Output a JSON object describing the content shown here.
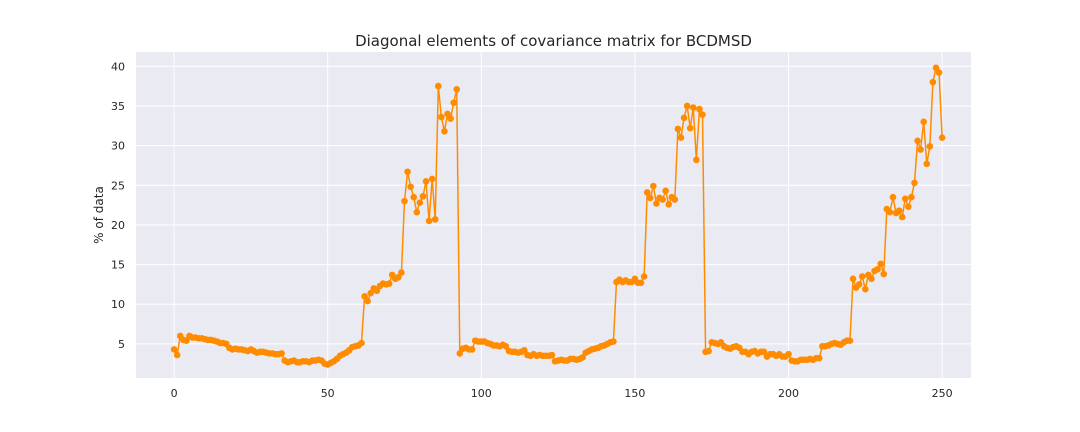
{
  "chart_data": {
    "type": "line",
    "title": "Diagonal elements of covariance matrix for BCDMSD",
    "xlabel": "",
    "ylabel": "% of data",
    "xlim": [
      -12.4,
      259.4
    ],
    "ylim": [
      0.7,
      41.8
    ],
    "xticks": [
      0,
      50,
      100,
      150,
      200,
      250
    ],
    "yticks": [
      5,
      10,
      15,
      20,
      25,
      30,
      35,
      40
    ],
    "grid": true,
    "legend": "none",
    "colors": {
      "background": "#eaeaf2",
      "grid": "#ffffff",
      "series": "#ff8c00"
    },
    "series": [
      {
        "x_start": 0,
        "values": [
          4.3,
          3.6,
          6.0,
          5.5,
          5.4,
          6.0,
          5.8,
          5.8,
          5.7,
          5.7,
          5.6,
          5.5,
          5.5,
          5.4,
          5.3,
          5.1,
          5.1,
          5.0,
          4.5,
          4.3,
          4.4,
          4.3,
          4.3,
          4.2,
          4.1,
          4.3,
          4.1,
          3.9,
          4.0,
          4.0,
          3.9,
          3.8,
          3.8,
          3.7,
          3.7,
          3.8,
          2.9,
          2.7,
          2.8,
          2.9,
          2.7,
          2.7,
          2.8,
          2.8,
          2.7,
          2.9,
          2.9,
          3.0,
          2.9,
          2.5,
          2.4,
          2.6,
          2.8,
          3.1,
          3.5,
          3.7,
          3.9,
          4.2,
          4.6,
          4.7,
          4.8,
          5.1,
          11.0,
          10.4,
          11.4,
          12.0,
          11.7,
          12.3,
          12.6,
          12.5,
          12.6,
          13.7,
          13.2,
          13.4,
          14.0,
          23.0,
          26.7,
          24.8,
          23.5,
          21.6,
          22.8,
          23.6,
          25.5,
          20.5,
          25.8,
          20.7,
          37.5,
          33.6,
          31.8,
          34.0,
          33.4,
          35.4,
          37.1,
          3.8,
          4.4,
          4.5,
          4.3,
          4.3,
          5.4,
          5.3,
          5.3,
          5.3,
          5.1,
          5.0,
          4.8,
          4.8,
          4.7,
          4.9,
          4.7,
          4.1,
          4.0,
          4.0,
          3.9,
          4.0,
          4.2,
          3.6,
          3.5,
          3.7,
          3.5,
          3.6,
          3.5,
          3.5,
          3.5,
          3.6,
          2.8,
          2.9,
          3.0,
          2.9,
          2.9,
          3.1,
          3.1,
          3.0,
          3.1,
          3.3,
          3.9,
          4.1,
          4.3,
          4.4,
          4.5,
          4.7,
          4.8,
          5.0,
          5.2,
          5.3,
          12.8,
          13.1,
          12.8,
          13.0,
          12.8,
          12.8,
          13.2,
          12.7,
          12.7,
          13.5,
          24.1,
          23.4,
          24.9,
          22.7,
          23.4,
          23.2,
          24.3,
          22.6,
          23.5,
          23.2,
          32.1,
          31.0,
          33.5,
          35.0,
          32.2,
          34.8,
          28.2,
          34.6,
          33.9,
          4.0,
          4.1,
          5.2,
          5.1,
          5.0,
          5.2,
          4.7,
          4.5,
          4.4,
          4.6,
          4.7,
          4.5,
          4.0,
          4.0,
          3.7,
          4.0,
          4.1,
          3.8,
          4.0,
          4.0,
          3.4,
          3.7,
          3.7,
          3.5,
          3.7,
          3.4,
          3.4,
          3.7,
          2.9,
          2.8,
          2.8,
          3.0,
          3.0,
          3.0,
          3.1,
          3.0,
          3.2,
          3.2,
          4.7,
          4.7,
          4.8,
          5.0,
          5.1,
          5.0,
          4.9,
          5.2,
          5.4,
          5.4,
          13.2,
          12.1,
          12.5,
          13.5,
          11.9,
          13.7,
          13.2,
          14.2,
          14.4,
          15.1,
          13.8,
          22.0,
          21.6,
          23.5,
          21.5,
          21.8,
          21.0,
          23.3,
          22.3,
          23.5,
          25.3,
          30.6,
          29.5,
          33.0,
          27.7,
          29.9,
          38.0,
          39.8,
          39.2,
          31.0
        ]
      }
    ]
  }
}
